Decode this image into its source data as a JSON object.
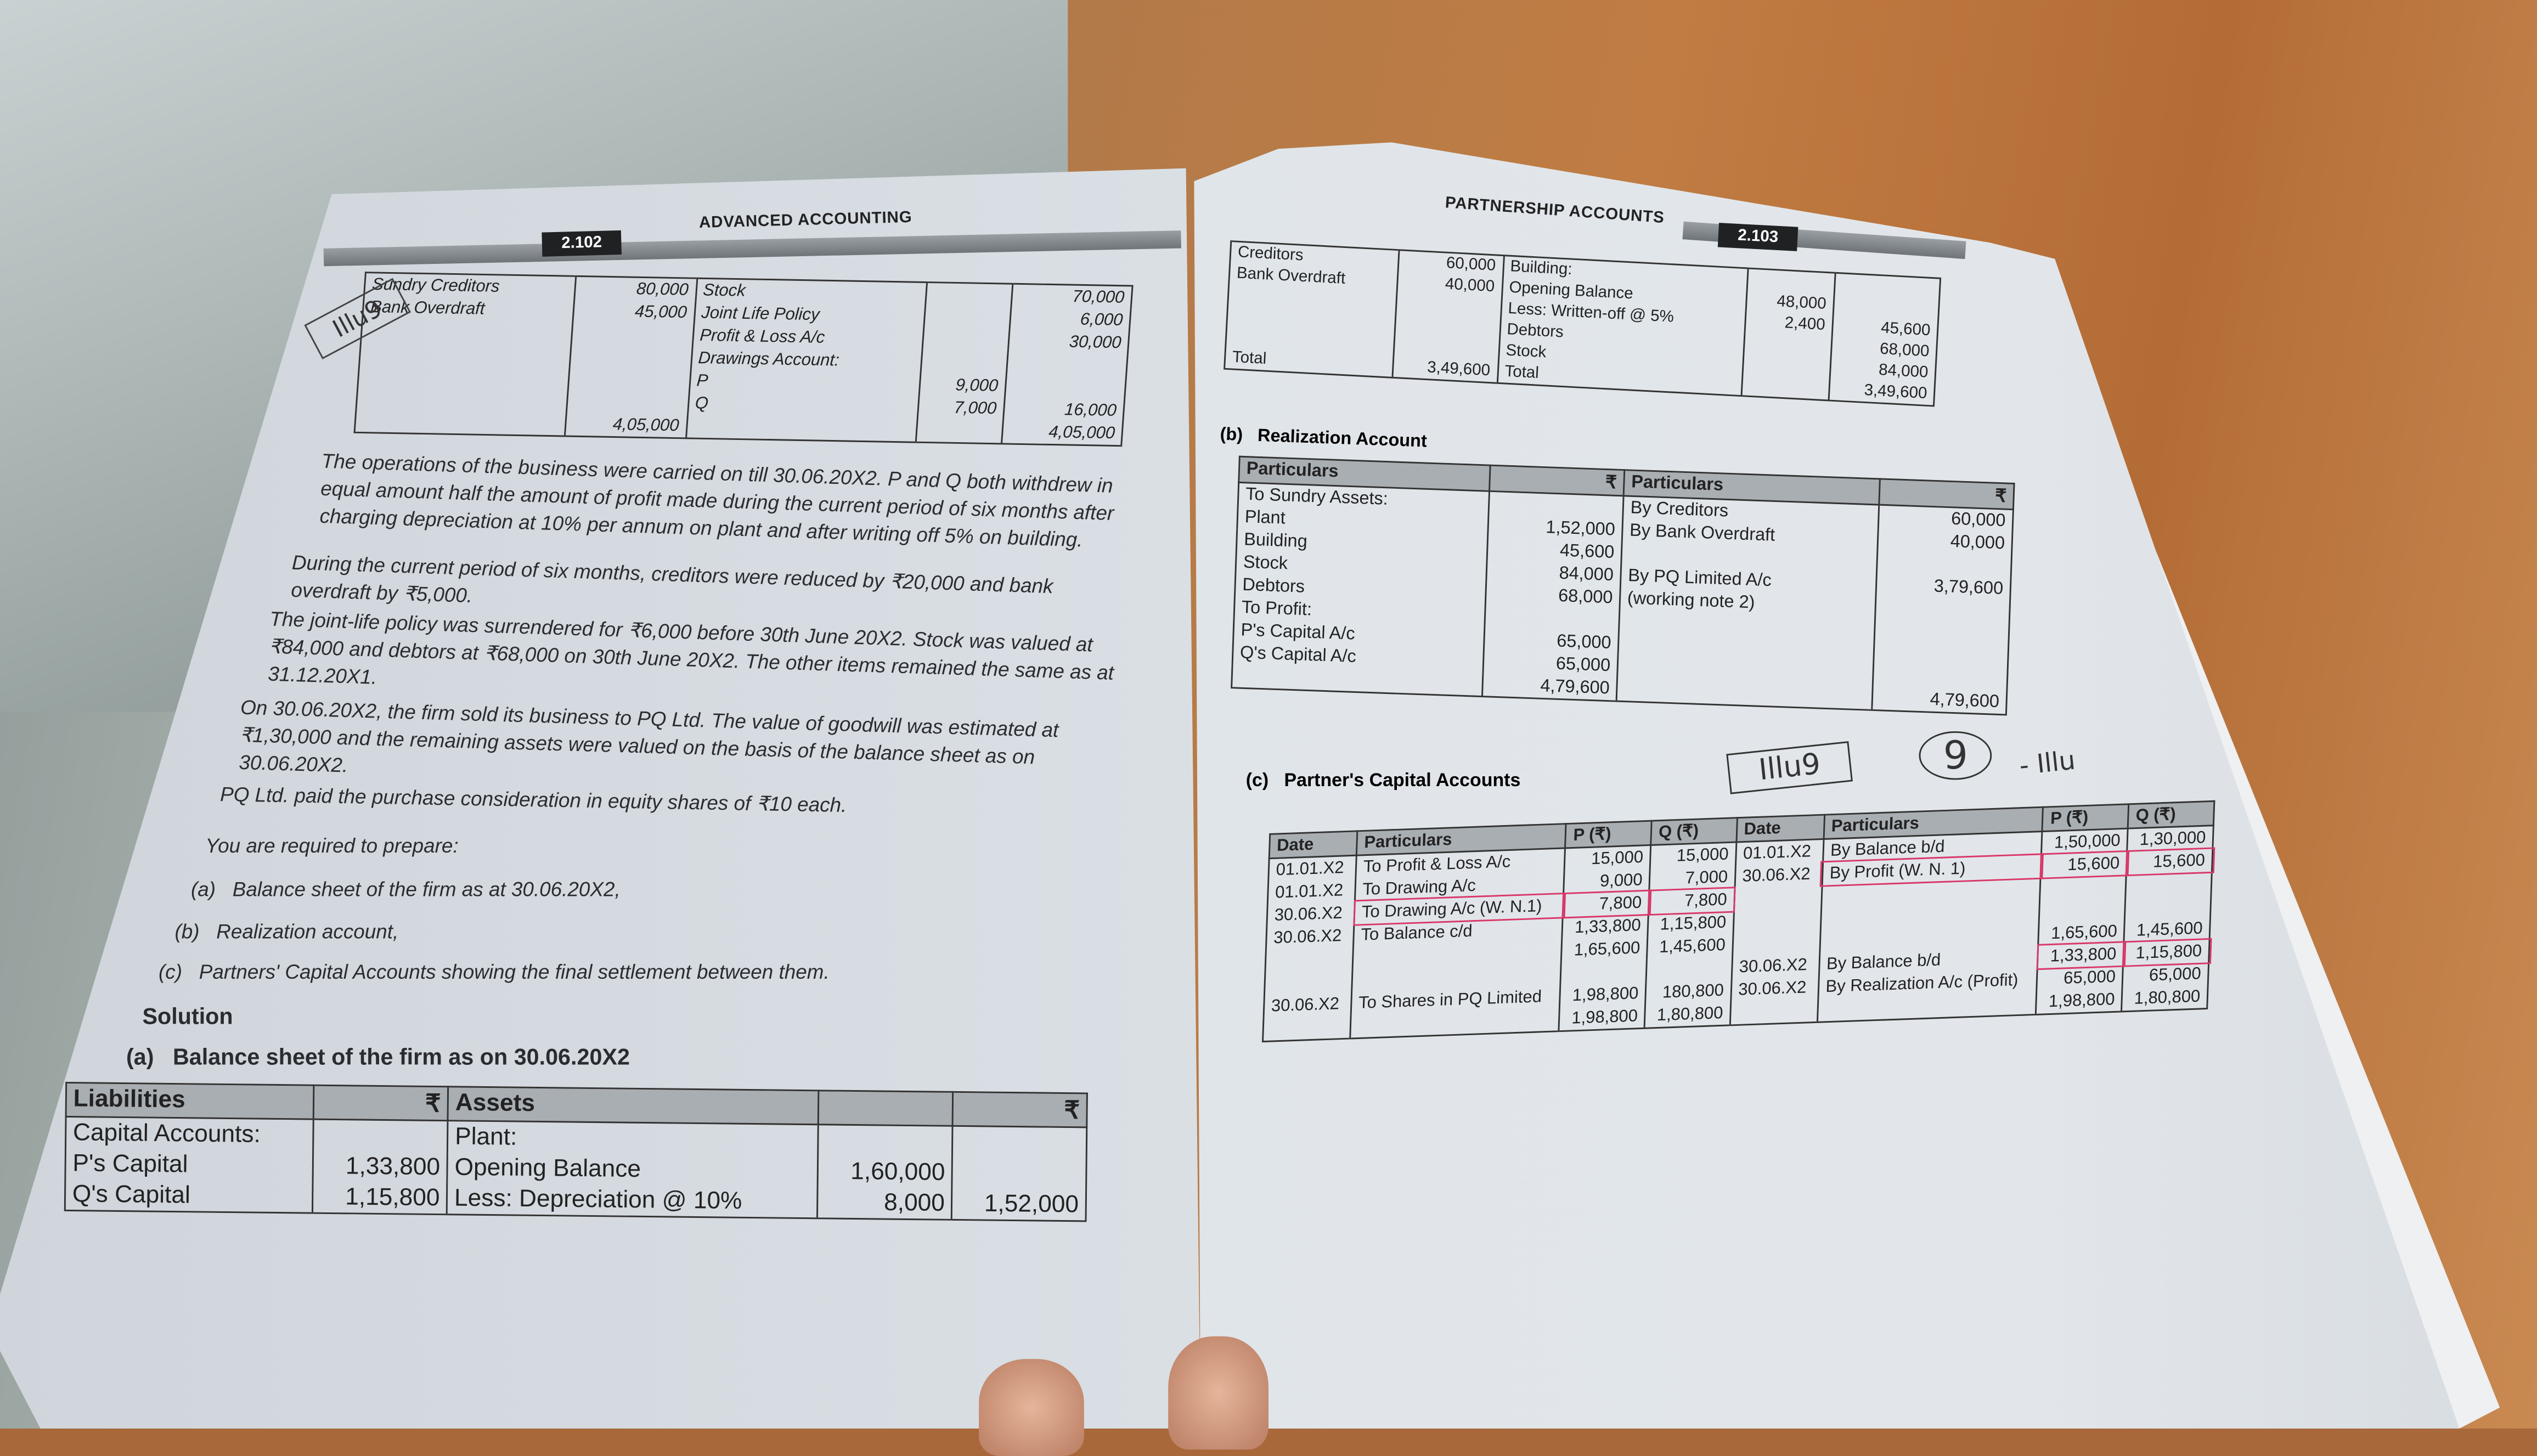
{
  "left_page": {
    "page_number": "2.102",
    "running_title": "ADVANCED ACCOUNTING",
    "top_table": {
      "rows": [
        [
          "Sundry Creditors",
          "80,000",
          "Stock",
          "",
          "70,000"
        ],
        [
          "Bank Overdraft",
          "45,000",
          "Joint Life Policy",
          "",
          "6,000"
        ],
        [
          "",
          "",
          "Profit & Loss A/c",
          "",
          "30,000"
        ],
        [
          "",
          "",
          "Drawings Account:",
          "",
          ""
        ],
        [
          "",
          "",
          "P",
          "9,000",
          ""
        ],
        [
          "",
          "",
          "Q",
          "7,000",
          "16,000"
        ],
        [
          "",
          "4,05,000",
          "",
          "",
          "4,05,000"
        ]
      ]
    },
    "paragraphs": [
      "The operations of the business were carried on till 30.06.20X2. P and Q both withdrew in equal amount half the amount of profit made during the current period of six months after charging depreciation at 10% per annum on plant and after writing off 5% on building.",
      "During the current period of six months, creditors were reduced by ₹20,000 and bank overdraft by ₹5,000.",
      "The joint-life policy was surrendered for ₹6,000 before 30th June 20X2. Stock was valued at ₹84,000 and debtors at ₹68,000 on 30th June 20X2. The other items remained the same as at 31.12.20X1.",
      "On 30.06.20X2, the firm sold its business to PQ Ltd. The value of goodwill was estimated at ₹1,30,000 and the remaining assets were valued on the basis of the balance sheet as on 30.06.20X2.",
      "PQ Ltd. paid the purchase consideration in equity shares of ₹10 each.",
      "You are required to prepare:"
    ],
    "requirements": [
      {
        "label": "(a)",
        "text": "Balance sheet of the firm as at 30.06.20X2,"
      },
      {
        "label": "(b)",
        "text": "Realization account,"
      },
      {
        "label": "(c)",
        "text": "Partners' Capital Accounts showing the final settlement between them."
      }
    ],
    "solution_heading": "Solution",
    "balance_sheet": {
      "label": "(a)",
      "title": "Balance sheet of the firm as on 30.06.20X2",
      "headers": [
        "Liabilities",
        "₹",
        "Assets",
        "",
        "₹"
      ],
      "rows": [
        [
          "Capital Accounts:",
          "",
          "Plant:",
          "",
          ""
        ],
        [
          "P's Capital",
          "1,33,800",
          "Opening Balance",
          "1,60,000",
          ""
        ],
        [
          "Q's Capital",
          "1,15,800",
          "Less: Depreciation @ 10%",
          "8,000",
          "1,52,000"
        ]
      ]
    },
    "handwriting": "Illu9"
  },
  "right_page": {
    "page_number": "2.103",
    "running_title": "PARTNERSHIP ACCOUNTS",
    "top_table": {
      "rows": [
        [
          "Creditors",
          "60,000",
          "Building:",
          "",
          ""
        ],
        [
          "Bank Overdraft",
          "40,000",
          "Opening Balance",
          "48,000",
          ""
        ],
        [
          "",
          "",
          "Less: Written-off @ 5%",
          "2,400",
          "45,600"
        ],
        [
          "",
          "",
          "Debtors",
          "",
          "68,000"
        ],
        [
          "",
          "",
          "Stock",
          "",
          "84,000"
        ],
        [
          "Total",
          "3,49,600",
          "Total",
          "",
          "3,49,600"
        ]
      ]
    },
    "realization": {
      "label": "(b)",
      "title": "Realization Account",
      "headers": [
        "Particulars",
        "₹",
        "Particulars",
        "₹"
      ],
      "rows": [
        [
          "To Sundry Assets:",
          "",
          "By Creditors",
          "60,000"
        ],
        [
          "Plant",
          "1,52,000",
          "By Bank Overdraft",
          "40,000"
        ],
        [
          "Building",
          "45,600",
          "",
          ""
        ],
        [
          "Stock",
          "84,000",
          "By PQ Limited A/c",
          "3,79,600"
        ],
        [
          "Debtors",
          "68,000",
          "(working note 2)",
          ""
        ],
        [
          "To Profit:",
          "",
          "",
          ""
        ],
        [
          "P's Capital A/c",
          "65,000",
          "",
          ""
        ],
        [
          "Q's Capital A/c",
          "65,000",
          "",
          ""
        ],
        [
          "",
          "4,79,600",
          "",
          "4,79,600"
        ]
      ]
    },
    "capital": {
      "label": "(c)",
      "title": "Partner's Capital Accounts",
      "headers": [
        "Date",
        "Particulars",
        "P (₹)",
        "Q (₹)",
        "Date",
        "Particulars",
        "P (₹)",
        "Q (₹)"
      ],
      "rows": [
        [
          "01.01.X2",
          "To Profit & Loss A/c",
          "15,000",
          "15,000",
          "01.01.X2",
          "By Balance b/d",
          "1,50,000",
          "1,30,000"
        ],
        [
          "01.01.X2",
          "To Drawing A/c",
          "9,000",
          "7,000",
          "30.06.X2",
          "By Profit (W. N. 1)",
          "15,600",
          "15,600"
        ],
        [
          "30.06.X2",
          "To Drawing A/c (W. N.1)",
          "7,800",
          "7,800",
          "",
          "",
          "",
          ""
        ],
        [
          "30.06.X2",
          "To Balance c/d",
          "1,33,800",
          "1,15,800",
          "",
          "",
          "",
          ""
        ],
        [
          "",
          "",
          "1,65,600",
          "1,45,600",
          "",
          "",
          "1,65,600",
          "1,45,600"
        ],
        [
          "",
          "",
          "",
          "",
          "30.06.X2",
          "By Balance b/d",
          "1,33,800",
          "1,15,800"
        ],
        [
          "30.06.X2",
          "To Shares in PQ Limited",
          "1,98,800",
          "180,800",
          "30.06.X2",
          "By Realization A/c (Profit)",
          "65,000",
          "65,000"
        ],
        [
          "",
          "",
          "1,98,800",
          "1,80,800",
          "",
          "",
          "1,98,800",
          "1,80,800"
        ]
      ]
    },
    "handwriting": {
      "boxed": "Illu9",
      "circled": "9",
      "trailing": "- Illu"
    },
    "annotation_color": "#d9386a"
  }
}
